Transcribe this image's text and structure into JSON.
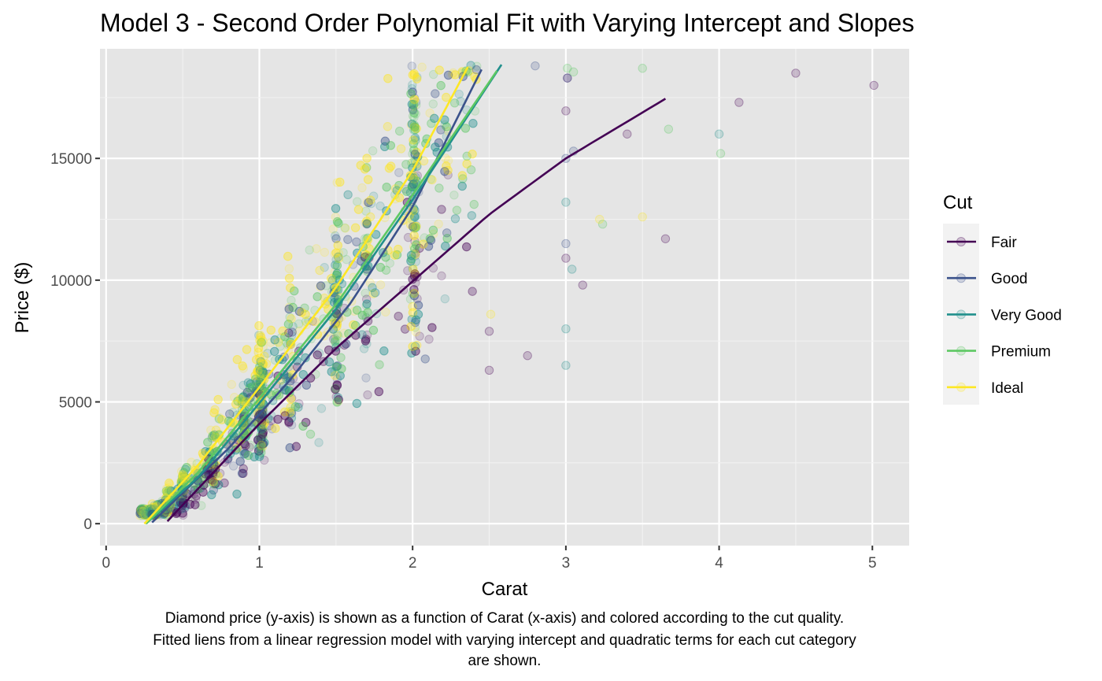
{
  "chart_data": {
    "type": "scatter",
    "title": "Model 3 - Second Order Polynomial Fit with Varying Intercept and Slopes",
    "xlabel": "Carat",
    "ylabel": "Price ($)",
    "xlim": [
      -0.04,
      5.24
    ],
    "ylim": [
      -900,
      19500
    ],
    "x_ticks": [
      0,
      1,
      2,
      3,
      4,
      5
    ],
    "x_tick_labels": [
      "0",
      "1",
      "2",
      "3",
      "4",
      "5"
    ],
    "y_ticks": [
      0,
      5000,
      10000,
      15000
    ],
    "y_tick_labels": [
      "0",
      "5000",
      "10000",
      "15000"
    ],
    "grid": true,
    "legend": {
      "title": "Cut",
      "position": "right"
    },
    "series": [
      {
        "name": "Fair",
        "color": "#440154",
        "fit_line": {
          "x": [
            0.4,
            1.0,
            1.5,
            2.0,
            2.5,
            3.0,
            3.65
          ],
          "y": [
            100,
            4100,
            7200,
            9950,
            12700,
            15000,
            17450
          ]
        }
      },
      {
        "name": "Good",
        "color": "#3B528B",
        "fit_line": {
          "x": [
            0.3,
            0.8,
            1.2,
            1.6,
            2.0,
            2.45
          ],
          "y": [
            50,
            3100,
            5900,
            9100,
            13000,
            18650
          ]
        }
      },
      {
        "name": "Very Good",
        "color": "#21908C",
        "fit_line": {
          "x": [
            0.26,
            0.6,
            1.0,
            1.5,
            2.0,
            2.58
          ],
          "y": [
            0,
            1900,
            4950,
            8800,
            13300,
            18850
          ]
        }
      },
      {
        "name": "Premium",
        "color": "#5DC863",
        "fit_line": {
          "x": [
            0.26,
            0.6,
            1.0,
            1.5,
            2.0,
            2.55
          ],
          "y": [
            0,
            2100,
            5150,
            9000,
            13500,
            18600
          ]
        }
      },
      {
        "name": "Ideal",
        "color": "#FDE725",
        "fit_line": {
          "x": [
            0.25,
            0.6,
            1.0,
            1.5,
            2.0,
            2.36
          ],
          "y": [
            0,
            2400,
            5600,
            9700,
            14500,
            18750
          ]
        }
      }
    ],
    "outliers": [
      {
        "cut": "Fair",
        "points": [
          [
            4.5,
            18500
          ],
          [
            5.01,
            18000
          ],
          [
            4.13,
            17300
          ],
          [
            3.65,
            11700
          ],
          [
            3.4,
            16000
          ],
          [
            3.11,
            9800
          ],
          [
            3.0,
            16950
          ],
          [
            3.0,
            10900
          ],
          [
            2.75,
            6900
          ],
          [
            2.5,
            6300
          ],
          [
            2.5,
            7900
          ],
          [
            3.01,
            18300
          ]
        ]
      },
      {
        "cut": "Good",
        "points": [
          [
            3.01,
            18300
          ],
          [
            3.05,
            15300
          ],
          [
            3.0,
            15000
          ],
          [
            2.8,
            18800
          ],
          [
            3.0,
            11500
          ]
        ]
      },
      {
        "cut": "Very Good",
        "points": [
          [
            3.0,
            6500
          ],
          [
            3.0,
            8000
          ],
          [
            3.0,
            13200
          ],
          [
            4.0,
            16000
          ],
          [
            3.04,
            10450
          ]
        ]
      },
      {
        "cut": "Premium",
        "points": [
          [
            3.5,
            18700
          ],
          [
            4.01,
            15200
          ],
          [
            3.67,
            16200
          ],
          [
            3.24,
            12300
          ],
          [
            3.01,
            18700
          ],
          [
            3.05,
            18550
          ]
        ]
      },
      {
        "cut": "Ideal",
        "points": [
          [
            3.5,
            12600
          ],
          [
            3.22,
            12500
          ],
          [
            2.51,
            8600
          ]
        ]
      }
    ]
  },
  "caption": {
    "lines": [
      "Diamond price (y-axis) is shown as a function of Carat (x-axis) and colored according to the cut quality.",
      "Fitted liens from a linear regression model with varying intercept and quadratic terms for each cut category",
      "are shown."
    ]
  }
}
